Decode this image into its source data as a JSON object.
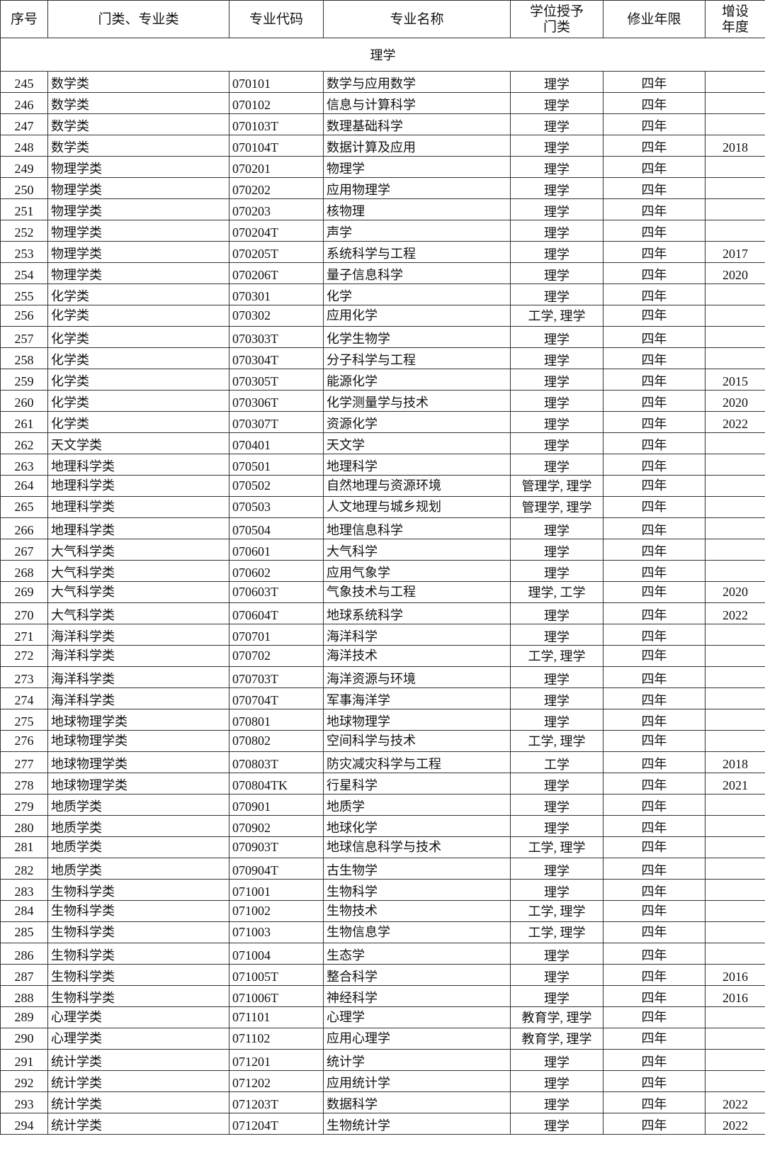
{
  "headers": [
    "序号",
    "门类、专业类",
    "专业代码",
    "专业名称",
    "学位授予门类",
    "修业年限",
    "增设年度"
  ],
  "section": "理学",
  "rows": [
    [
      "245",
      "数学类",
      "070101",
      "数学与应用数学",
      "理学",
      "四年",
      ""
    ],
    [
      "246",
      "数学类",
      "070102",
      "信息与计算科学",
      "理学",
      "四年",
      ""
    ],
    [
      "247",
      "数学类",
      "070103T",
      "数理基础科学",
      "理学",
      "四年",
      ""
    ],
    [
      "248",
      "数学类",
      "070104T",
      "数据计算及应用",
      "理学",
      "四年",
      "2018"
    ],
    [
      "249",
      "物理学类",
      "070201",
      "物理学",
      "理学",
      "四年",
      ""
    ],
    [
      "250",
      "物理学类",
      "070202",
      "应用物理学",
      "理学",
      "四年",
      ""
    ],
    [
      "251",
      "物理学类",
      "070203",
      "核物理",
      "理学",
      "四年",
      ""
    ],
    [
      "252",
      "物理学类",
      "070204T",
      "声学",
      "理学",
      "四年",
      ""
    ],
    [
      "253",
      "物理学类",
      "070205T",
      "系统科学与工程",
      "理学",
      "四年",
      "2017"
    ],
    [
      "254",
      "物理学类",
      "070206T",
      "量子信息科学",
      "理学",
      "四年",
      "2020"
    ],
    [
      "255",
      "化学类",
      "070301",
      "化学",
      "理学",
      "四年",
      ""
    ],
    [
      "256",
      "化学类",
      "070302",
      "应用化学",
      "工学, 理学",
      "四年",
      ""
    ],
    [
      "257",
      "化学类",
      "070303T",
      "化学生物学",
      "理学",
      "四年",
      ""
    ],
    [
      "258",
      "化学类",
      "070304T",
      "分子科学与工程",
      "理学",
      "四年",
      ""
    ],
    [
      "259",
      "化学类",
      "070305T",
      "能源化学",
      "理学",
      "四年",
      "2015"
    ],
    [
      "260",
      "化学类",
      "070306T",
      "化学测量学与技术",
      "理学",
      "四年",
      "2020"
    ],
    [
      "261",
      "化学类",
      "070307T",
      "资源化学",
      "理学",
      "四年",
      "2022"
    ],
    [
      "262",
      "天文学类",
      "070401",
      "天文学",
      "理学",
      "四年",
      ""
    ],
    [
      "263",
      "地理科学类",
      "070501",
      "地理科学",
      "理学",
      "四年",
      ""
    ],
    [
      "264",
      "地理科学类",
      "070502",
      "自然地理与资源环境",
      "管理学, 理学",
      "四年",
      ""
    ],
    [
      "265",
      "地理科学类",
      "070503",
      "人文地理与城乡规划",
      "管理学, 理学",
      "四年",
      ""
    ],
    [
      "266",
      "地理科学类",
      "070504",
      "地理信息科学",
      "理学",
      "四年",
      ""
    ],
    [
      "267",
      "大气科学类",
      "070601",
      "大气科学",
      "理学",
      "四年",
      ""
    ],
    [
      "268",
      "大气科学类",
      "070602",
      "应用气象学",
      "理学",
      "四年",
      ""
    ],
    [
      "269",
      "大气科学类",
      "070603T",
      "气象技术与工程",
      "理学, 工学",
      "四年",
      "2020"
    ],
    [
      "270",
      "大气科学类",
      "070604T",
      "地球系统科学",
      "理学",
      "四年",
      "2022"
    ],
    [
      "271",
      "海洋科学类",
      "070701",
      "海洋科学",
      "理学",
      "四年",
      ""
    ],
    [
      "272",
      "海洋科学类",
      "070702",
      "海洋技术",
      "工学, 理学",
      "四年",
      ""
    ],
    [
      "273",
      "海洋科学类",
      "070703T",
      "海洋资源与环境",
      "理学",
      "四年",
      ""
    ],
    [
      "274",
      "海洋科学类",
      "070704T",
      "军事海洋学",
      "理学",
      "四年",
      ""
    ],
    [
      "275",
      "地球物理学类",
      "070801",
      "地球物理学",
      "理学",
      "四年",
      ""
    ],
    [
      "276",
      "地球物理学类",
      "070802",
      "空间科学与技术",
      "工学, 理学",
      "四年",
      ""
    ],
    [
      "277",
      "地球物理学类",
      "070803T",
      "防灾减灾科学与工程",
      "工学",
      "四年",
      "2018"
    ],
    [
      "278",
      "地球物理学类",
      "070804TK",
      "行星科学",
      "理学",
      "四年",
      "2021"
    ],
    [
      "279",
      "地质学类",
      "070901",
      "地质学",
      "理学",
      "四年",
      ""
    ],
    [
      "280",
      "地质学类",
      "070902",
      "地球化学",
      "理学",
      "四年",
      ""
    ],
    [
      "281",
      "地质学类",
      "070903T",
      "地球信息科学与技术",
      "工学, 理学",
      "四年",
      ""
    ],
    [
      "282",
      "地质学类",
      "070904T",
      "古生物学",
      "理学",
      "四年",
      ""
    ],
    [
      "283",
      "生物科学类",
      "071001",
      "生物科学",
      "理学",
      "四年",
      ""
    ],
    [
      "284",
      "生物科学类",
      "071002",
      "生物技术",
      "工学, 理学",
      "四年",
      ""
    ],
    [
      "285",
      "生物科学类",
      "071003",
      "生物信息学",
      "工学, 理学",
      "四年",
      ""
    ],
    [
      "286",
      "生物科学类",
      "071004",
      "生态学",
      "理学",
      "四年",
      ""
    ],
    [
      "287",
      "生物科学类",
      "071005T",
      "整合科学",
      "理学",
      "四年",
      "2016"
    ],
    [
      "288",
      "生物科学类",
      "071006T",
      "神经科学",
      "理学",
      "四年",
      "2016"
    ],
    [
      "289",
      "心理学类",
      "071101",
      "心理学",
      "教育学, 理学",
      "四年",
      ""
    ],
    [
      "290",
      "心理学类",
      "071102",
      "应用心理学",
      "教育学, 理学",
      "四年",
      ""
    ],
    [
      "291",
      "统计学类",
      "071201",
      "统计学",
      "理学",
      "四年",
      ""
    ],
    [
      "292",
      "统计学类",
      "071202",
      "应用统计学",
      "理学",
      "四年",
      ""
    ],
    [
      "293",
      "统计学类",
      "071203T",
      "数据科学",
      "理学",
      "四年",
      "2022"
    ],
    [
      "294",
      "统计学类",
      "071204T",
      "生物统计学",
      "理学",
      "四年",
      "2022"
    ]
  ]
}
